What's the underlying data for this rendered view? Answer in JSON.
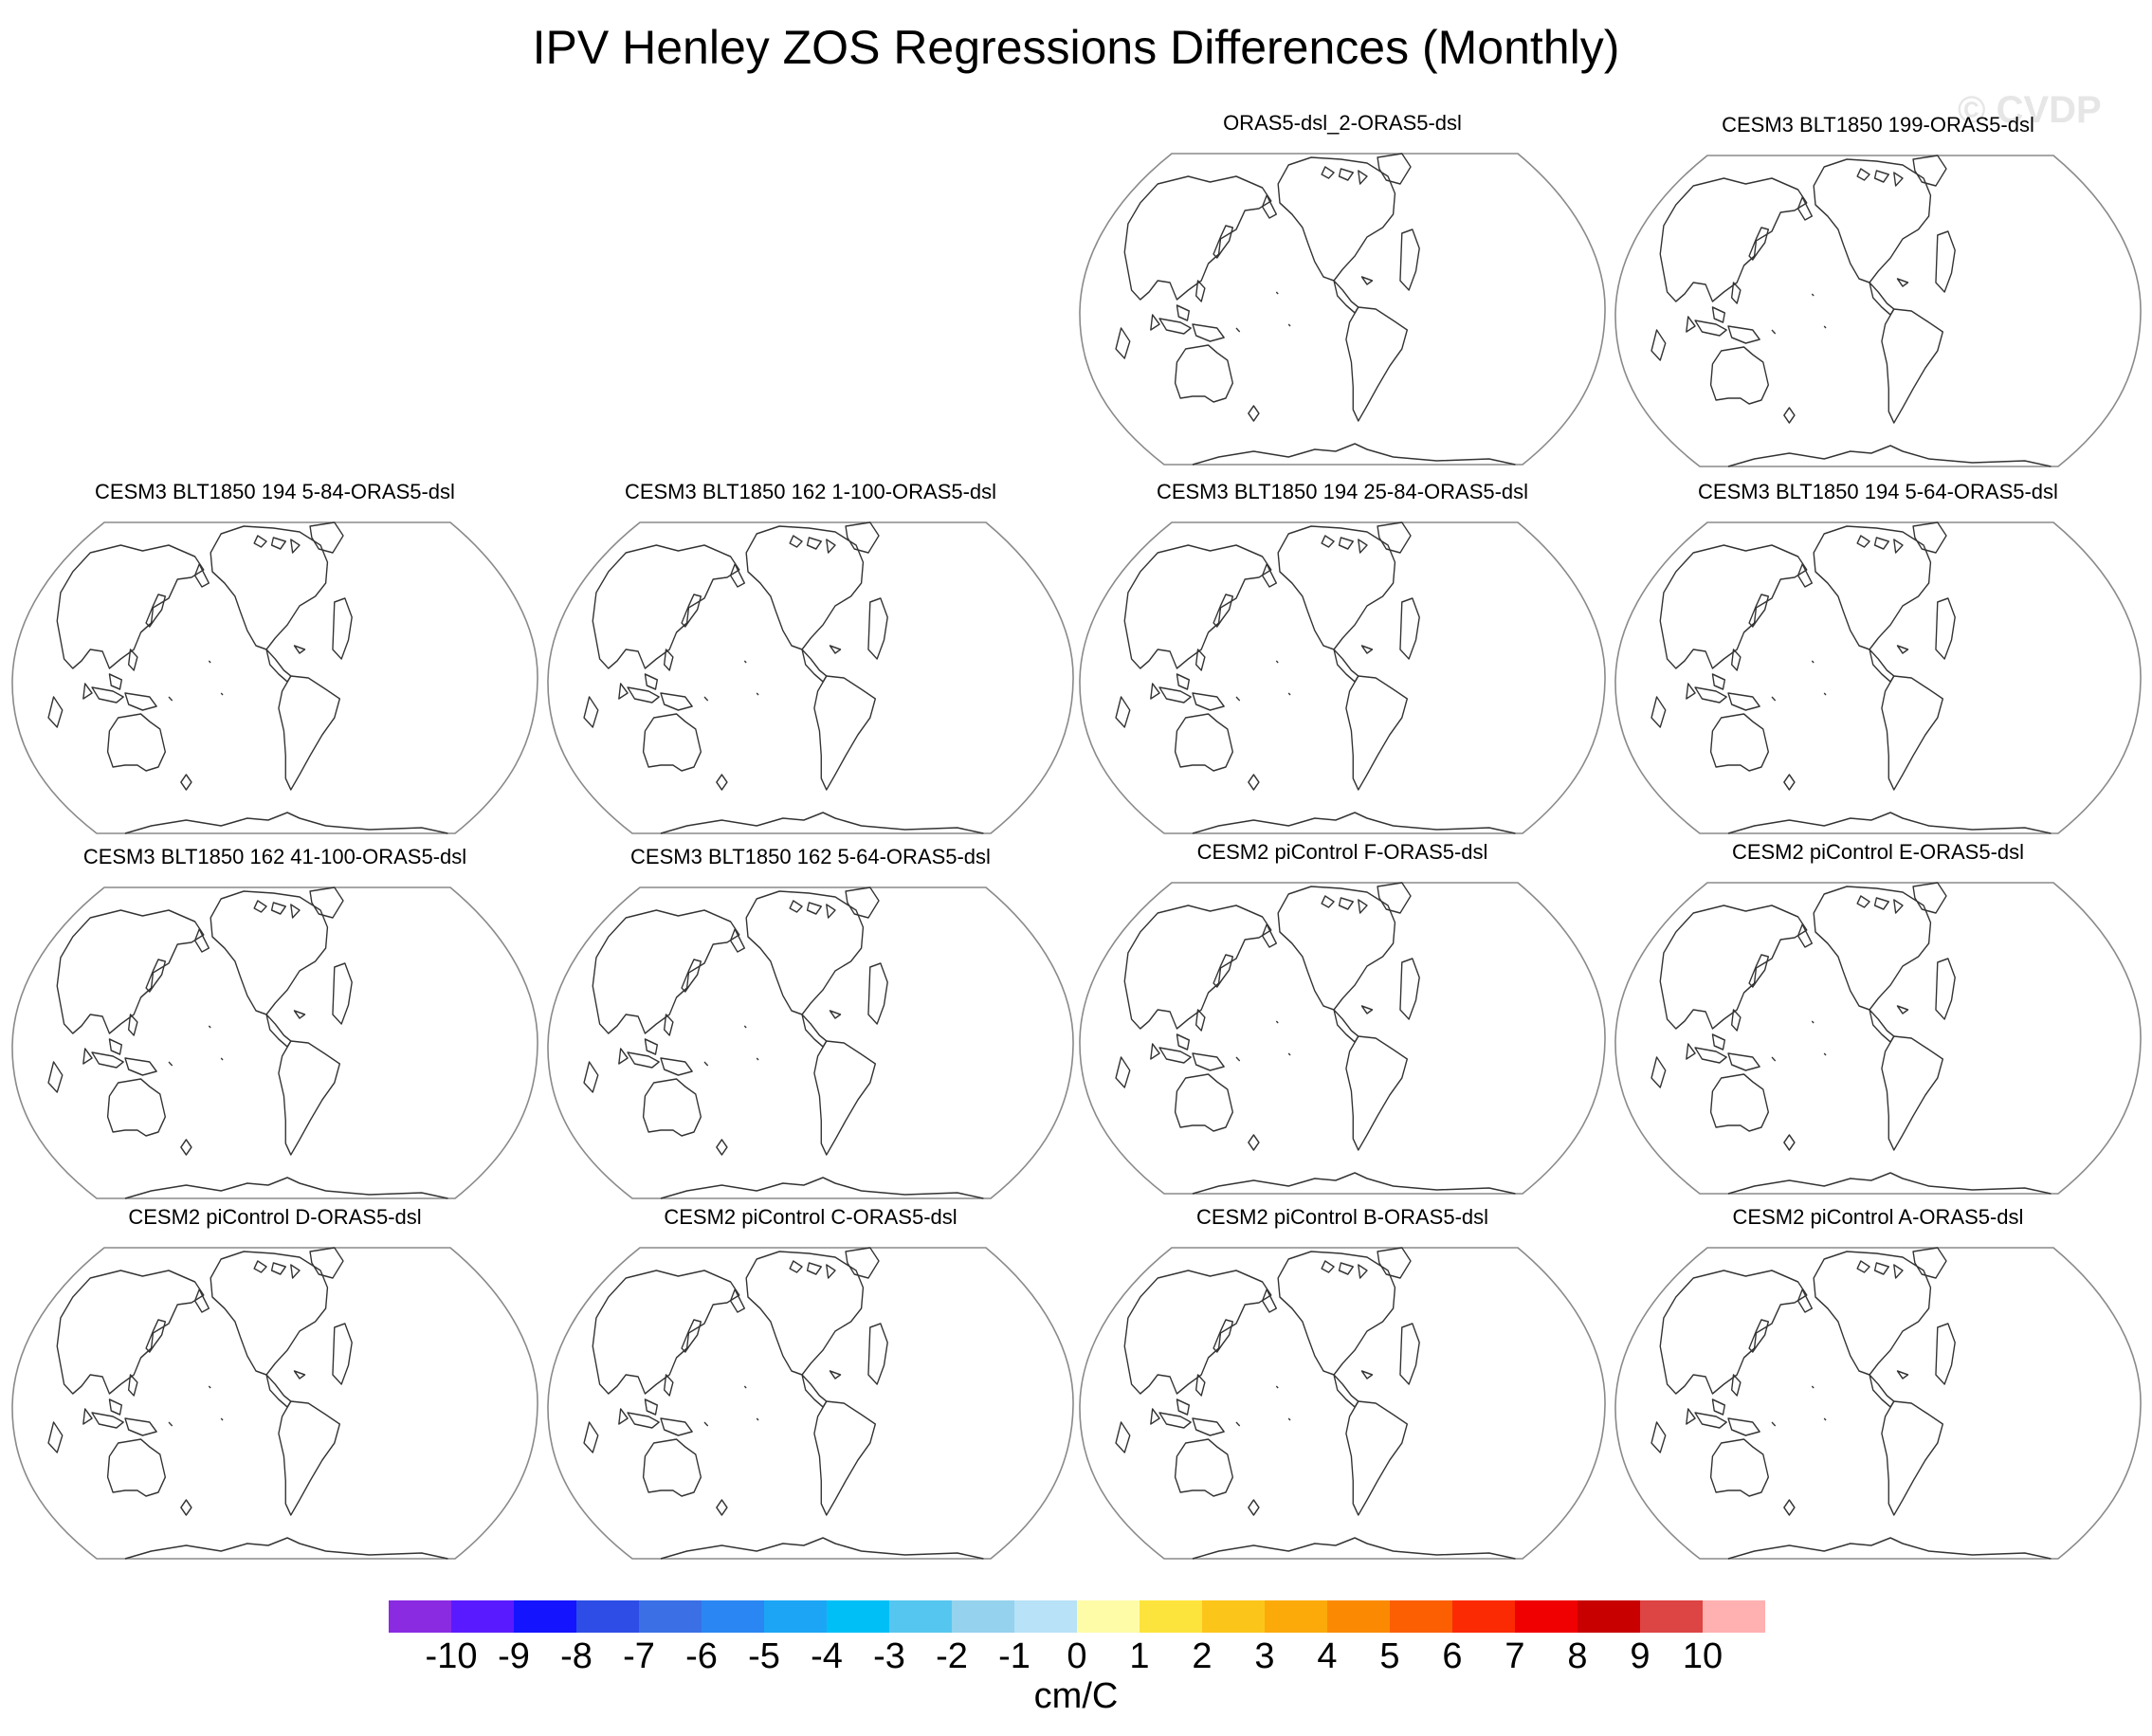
{
  "title": "IPV Henley ZOS Regressions Differences (Monthly)",
  "watermark": "© CVDP",
  "panels": [
    {
      "title": "ORAS5-dsl_2-ORAS5-dsl"
    },
    {
      "title": "CESM3 BLT1850 199-ORAS5-dsl"
    },
    {
      "title": "CESM3 BLT1850 194 5-84-ORAS5-dsl"
    },
    {
      "title": "CESM3 BLT1850 162 1-100-ORAS5-dsl"
    },
    {
      "title": "CESM3 BLT1850 194 25-84-ORAS5-dsl"
    },
    {
      "title": "CESM3 BLT1850 194 5-64-ORAS5-dsl"
    },
    {
      "title": "CESM3 BLT1850 162 41-100-ORAS5-dsl"
    },
    {
      "title": "CESM3 BLT1850 162 5-64-ORAS5-dsl"
    },
    {
      "title": "CESM2 piControl F-ORAS5-dsl"
    },
    {
      "title": "CESM2 piControl E-ORAS5-dsl"
    },
    {
      "title": "CESM2 piControl D-ORAS5-dsl"
    },
    {
      "title": "CESM2 piControl C-ORAS5-dsl"
    },
    {
      "title": "CESM2 piControl B-ORAS5-dsl"
    },
    {
      "title": "CESM2 piControl A-ORAS5-dsl"
    }
  ],
  "colorbar": {
    "units": "cm/C",
    "labels": [
      "-10",
      "-9",
      "-8",
      "-7",
      "-6",
      "-5",
      "-4",
      "-3",
      "-2",
      "-1",
      "0",
      "1",
      "2",
      "3",
      "4",
      "5",
      "6",
      "7",
      "8",
      "9",
      "10"
    ],
    "colors": [
      "#8a2be2",
      "#5a1aff",
      "#1414ff",
      "#2e4de6",
      "#3a6fe6",
      "#2a86f2",
      "#1ca5f5",
      "#00bff7",
      "#55c6f0",
      "#95d2ee",
      "#b8e2f7",
      "#fffca8",
      "#fde43c",
      "#fcc51a",
      "#fcaa0a",
      "#fb8a02",
      "#fb5f02",
      "#fb2a02",
      "#f00000",
      "#c80000",
      "#dd4444",
      "#ffb0b0"
    ]
  }
}
